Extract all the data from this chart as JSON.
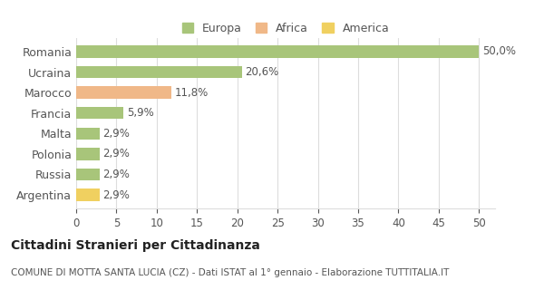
{
  "categories": [
    "Romania",
    "Ucraina",
    "Marocco",
    "Francia",
    "Malta",
    "Polonia",
    "Russia",
    "Argentina"
  ],
  "values": [
    50.0,
    20.6,
    11.8,
    5.9,
    2.9,
    2.9,
    2.9,
    2.9
  ],
  "labels": [
    "50,0%",
    "20,6%",
    "11,8%",
    "5,9%",
    "2,9%",
    "2,9%",
    "2,9%",
    "2,9%"
  ],
  "colors": [
    "#a8c57a",
    "#a8c57a",
    "#f0b888",
    "#a8c57a",
    "#a8c57a",
    "#a8c57a",
    "#a8c57a",
    "#f0d060"
  ],
  "legend_labels": [
    "Europa",
    "Africa",
    "America"
  ],
  "legend_colors": [
    "#a8c57a",
    "#f0b888",
    "#f0d060"
  ],
  "title": "Cittadini Stranieri per Cittadinanza",
  "subtitle": "COMUNE DI MOTTA SANTA LUCIA (CZ) - Dati ISTAT al 1° gennaio - Elaborazione TUTTITALIA.IT",
  "xlim": [
    0,
    52
  ],
  "xticks": [
    0,
    5,
    10,
    15,
    20,
    25,
    30,
    35,
    40,
    45,
    50
  ],
  "background_color": "#ffffff",
  "grid_color": "#dddddd"
}
